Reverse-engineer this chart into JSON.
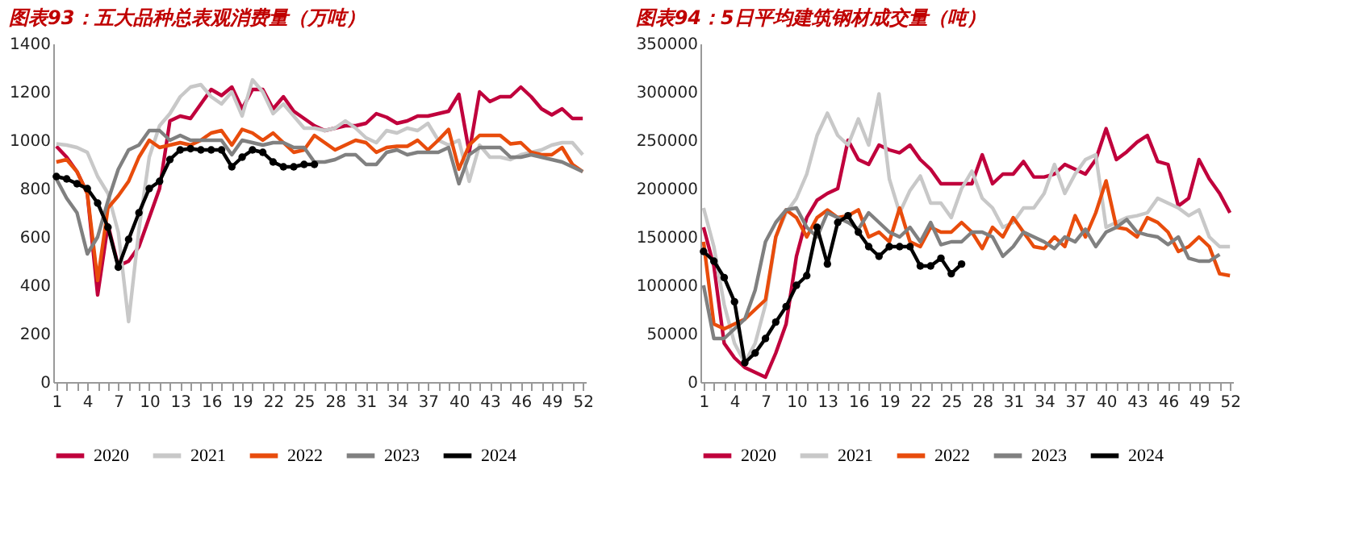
{
  "chart_data": [
    {
      "type": "line",
      "title": "图表93：五大品种总表观消费量（万吨）",
      "categories": [
        "1",
        null,
        null,
        "4",
        null,
        null,
        "7",
        null,
        null,
        "10",
        null,
        null,
        "13",
        null,
        null,
        "16",
        null,
        null,
        "19",
        null,
        null,
        "22",
        null,
        null,
        "25",
        null,
        null,
        "28",
        null,
        null,
        "31",
        null,
        null,
        "34",
        null,
        null,
        "37",
        null,
        null,
        "40",
        null,
        null,
        "43",
        null,
        null,
        "46",
        null,
        null,
        "49",
        null,
        null,
        "52"
      ],
      "ylim": [
        0,
        1400
      ],
      "yticks": [
        0,
        200,
        400,
        600,
        800,
        1000,
        1200,
        1400
      ],
      "grid": false,
      "legend": "bottom",
      "series": [
        {
          "name": "2020",
          "color": "#c0003c",
          "marker": "none",
          "values": [
            975,
            930,
            870,
            780,
            360,
            650,
            480,
            500,
            560,
            680,
            800,
            1080,
            1100,
            1090,
            1150,
            1210,
            1185,
            1220,
            1130,
            1210,
            1210,
            1130,
            1180,
            1120,
            1090,
            1060,
            1040,
            1050,
            1060,
            1060,
            1070,
            1110,
            1095,
            1070,
            1080,
            1100,
            1100,
            1110,
            1120,
            1190,
            950,
            1200,
            1160,
            1180,
            1180,
            1220,
            1180,
            1130,
            1105,
            1130,
            1090,
            1090
          ]
        },
        {
          "name": "2021",
          "color": "#c8c8c8",
          "marker": "none",
          "values": [
            985,
            980,
            970,
            950,
            850,
            780,
            620,
            250,
            630,
            930,
            1060,
            1110,
            1180,
            1220,
            1230,
            1180,
            1150,
            1200,
            1100,
            1250,
            1200,
            1110,
            1150,
            1100,
            1050,
            1050,
            1040,
            1050,
            1080,
            1050,
            1010,
            990,
            1040,
            1030,
            1050,
            1040,
            1070,
            1000,
            980,
            1000,
            830,
            980,
            930,
            930,
            920,
            940,
            950,
            960,
            980,
            990,
            990,
            940
          ]
        },
        {
          "name": "2022",
          "color": "#e84c0c",
          "marker": "none",
          "values": [
            910,
            920,
            870,
            780,
            420,
            720,
            770,
            830,
            930,
            1000,
            970,
            980,
            990,
            980,
            1000,
            1030,
            1040,
            980,
            1045,
            1030,
            1000,
            1030,
            990,
            950,
            960,
            1020,
            990,
            960,
            980,
            1000,
            990,
            950,
            970,
            975,
            975,
            1000,
            960,
            1000,
            1045,
            880,
            980,
            1020,
            1020,
            1020,
            985,
            990,
            950,
            940,
            940,
            970,
            900,
            870
          ]
        },
        {
          "name": "2023",
          "color": "#808080",
          "marker": "none",
          "values": [
            840,
            760,
            700,
            530,
            600,
            750,
            880,
            960,
            980,
            1040,
            1040,
            1000,
            1020,
            1000,
            1000,
            1000,
            1000,
            940,
            1000,
            990,
            980,
            990,
            990,
            970,
            970,
            910,
            910,
            920,
            940,
            940,
            900,
            900,
            950,
            960,
            940,
            950,
            950,
            950,
            970,
            820,
            940,
            970,
            970,
            970,
            930,
            930,
            940,
            930,
            920,
            910,
            890,
            870
          ]
        },
        {
          "name": "2024",
          "color": "#000000",
          "marker": "circle",
          "values": [
            850,
            840,
            820,
            800,
            740,
            640,
            475,
            590,
            700,
            800,
            830,
            920,
            960,
            965,
            960,
            960,
            960,
            890,
            930,
            960,
            950,
            910,
            890,
            890,
            900,
            900,
            null,
            null,
            null,
            null,
            null,
            null,
            null,
            null,
            null,
            null,
            null,
            null,
            null,
            null,
            null,
            null,
            null,
            null,
            null,
            null,
            null,
            null,
            null,
            null,
            null,
            null
          ]
        }
      ]
    },
    {
      "type": "line",
      "title": "图表94：5日平均建筑钢材成交量（吨）",
      "categories": [
        "1",
        null,
        null,
        "4",
        null,
        null,
        "7",
        null,
        null,
        "10",
        null,
        null,
        "13",
        null,
        null,
        "16",
        null,
        null,
        "19",
        null,
        null,
        "22",
        null,
        null,
        "25",
        null,
        null,
        "28",
        null,
        null,
        "31",
        null,
        null,
        "34",
        null,
        null,
        "37",
        null,
        null,
        "40",
        null,
        null,
        "43",
        null,
        null,
        "46",
        null,
        null,
        "49",
        null,
        null,
        "52"
      ],
      "ylim": [
        0,
        350000
      ],
      "yticks": [
        0,
        50000,
        100000,
        150000,
        200000,
        250000,
        300000,
        350000
      ],
      "grid": false,
      "legend": "bottom",
      "series": [
        {
          "name": "2020",
          "color": "#c0003c",
          "marker": "none",
          "values": [
            160000,
            120000,
            40000,
            25000,
            15000,
            10000,
            5000,
            30000,
            60000,
            130000,
            170000,
            188000,
            195000,
            200000,
            250000,
            230000,
            225000,
            245000,
            240000,
            237000,
            245000,
            230000,
            220000,
            205000,
            205000,
            205000,
            205000,
            235000,
            205000,
            215000,
            215000,
            228000,
            212000,
            212000,
            215000,
            225000,
            220000,
            215000,
            230000,
            262000,
            230000,
            238000,
            248000,
            255000,
            228000,
            225000,
            182000,
            190000,
            230000,
            210000,
            195000,
            175000
          ]
        },
        {
          "name": "2021",
          "color": "#c8c8c8",
          "marker": "none",
          "values": [
            180000,
            140000,
            80000,
            40000,
            20000,
            40000,
            80000,
            150000,
            175000,
            190000,
            215000,
            255000,
            278000,
            255000,
            245000,
            272000,
            245000,
            298000,
            210000,
            175000,
            198000,
            213000,
            185000,
            185000,
            170000,
            200000,
            218000,
            190000,
            180000,
            160000,
            165000,
            180000,
            180000,
            195000,
            225000,
            195000,
            215000,
            230000,
            235000,
            160000,
            165000,
            170000,
            172000,
            175000,
            190000,
            185000,
            180000,
            172000,
            178000,
            150000,
            140000,
            140000
          ]
        },
        {
          "name": "2022",
          "color": "#e84c0c",
          "marker": "none",
          "values": [
            145000,
            60000,
            55000,
            60000,
            65000,
            75000,
            85000,
            150000,
            178000,
            170000,
            150000,
            170000,
            178000,
            170000,
            172000,
            178000,
            150000,
            155000,
            145000,
            180000,
            145000,
            140000,
            160000,
            155000,
            155000,
            165000,
            155000,
            138000,
            160000,
            150000,
            170000,
            155000,
            140000,
            138000,
            150000,
            140000,
            172000,
            150000,
            175000,
            208000,
            160000,
            158000,
            150000,
            170000,
            165000,
            155000,
            135000,
            140000,
            150000,
            140000,
            112000,
            110000
          ]
        },
        {
          "name": "2023",
          "color": "#808080",
          "marker": "none",
          "values": [
            100000,
            45000,
            45000,
            55000,
            65000,
            95000,
            145000,
            165000,
            178000,
            180000,
            160000,
            150000,
            175000,
            170000,
            165000,
            158000,
            175000,
            165000,
            155000,
            150000,
            160000,
            145000,
            165000,
            142000,
            145000,
            145000,
            155000,
            155000,
            150000,
            130000,
            140000,
            155000,
            150000,
            145000,
            138000,
            150000,
            145000,
            158000,
            140000,
            155000,
            160000,
            168000,
            155000,
            152000,
            150000,
            142000,
            150000,
            128000,
            125000,
            125000,
            132000,
            null
          ]
        },
        {
          "name": "2024",
          "color": "#000000",
          "marker": "circle",
          "values": [
            135000,
            125000,
            108000,
            83000,
            20000,
            30000,
            45000,
            62000,
            78000,
            100000,
            110000,
            160000,
            122000,
            165000,
            172000,
            155000,
            140000,
            130000,
            140000,
            140000,
            140000,
            120000,
            120000,
            128000,
            112000,
            122000,
            null,
            null,
            null,
            null,
            null,
            null,
            null,
            null,
            null,
            null,
            null,
            null,
            null,
            null,
            null,
            null,
            null,
            null,
            null,
            null,
            null,
            null,
            null,
            null,
            null,
            null
          ]
        }
      ]
    }
  ]
}
